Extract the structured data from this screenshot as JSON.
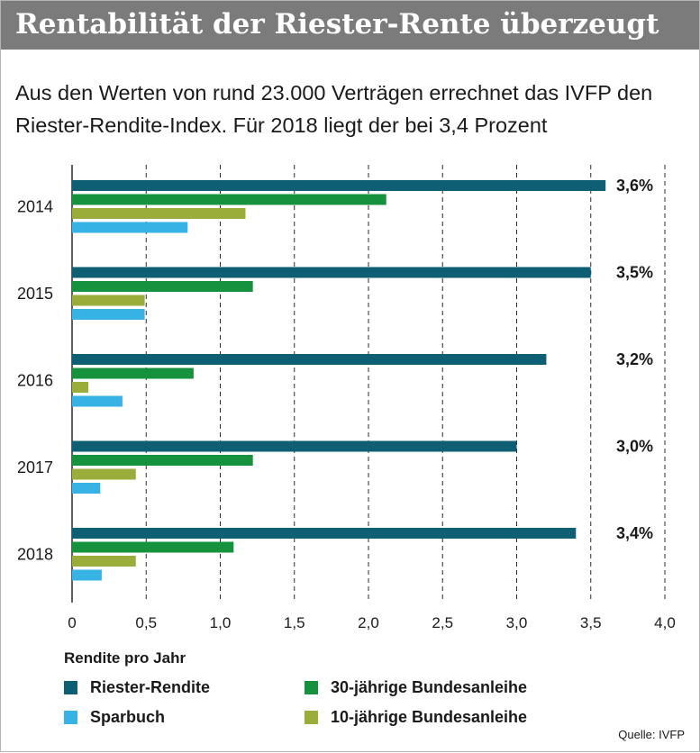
{
  "title": "Rentabilität der Riester-Rente überzeugt",
  "subtitle": "Aus den Werten von rund 23.000 Verträgen errechnet das IVFP den Riester-Rendite-Index. Für 2018 liegt der bei 3,4 Prozent",
  "source": "Quelle: IVFP",
  "legend_title": "Rendite pro Jahr",
  "colors": {
    "riester": "#0e5f73",
    "bund30": "#16913d",
    "bund10": "#9aad3a",
    "sparbuch": "#36b2e4",
    "grid": "#2b2b2b",
    "text": "#1a1a1a"
  },
  "chart_data": {
    "type": "bar",
    "orientation": "horizontal",
    "categories": [
      "2014",
      "2015",
      "2016",
      "2017",
      "2018"
    ],
    "series": [
      {
        "name": "Riester-Rendite",
        "color": "#0e5f73",
        "values": [
          3.6,
          3.5,
          3.2,
          3.0,
          3.4
        ],
        "labels": [
          "3,6%",
          "3,5%",
          "3,2%",
          "3,0%",
          "3,4%"
        ]
      },
      {
        "name": "30-jährige Bundesanleihe",
        "color": "#16913d",
        "values": [
          2.12,
          1.22,
          0.82,
          1.22,
          1.09
        ]
      },
      {
        "name": "10-jährige Bundesanleihe",
        "color": "#9aad3a",
        "values": [
          1.17,
          0.49,
          0.11,
          0.43,
          0.43
        ]
      },
      {
        "name": "Sparbuch",
        "color": "#36b2e4",
        "values": [
          0.78,
          0.49,
          0.34,
          0.19,
          0.2
        ]
      }
    ],
    "xlim": [
      0,
      4.0
    ],
    "xticks": [
      0,
      0.5,
      1.0,
      1.5,
      2.0,
      2.5,
      3.0,
      3.5,
      4.0
    ],
    "xtick_labels": [
      "0",
      "0,5",
      "1,0",
      "1,5",
      "2,0",
      "2,5",
      "3,0",
      "3,5",
      "4,0"
    ],
    "grid": "vertical-dashed",
    "legend_position": "bottom"
  },
  "legend": [
    {
      "label": "Riester-Rendite",
      "color": "#0e5f73"
    },
    {
      "label": "30-jährige Bundesanleihe",
      "color": "#16913d"
    },
    {
      "label": "Sparbuch",
      "color": "#36b2e4"
    },
    {
      "label": "10-jährige Bundesanleihe",
      "color": "#9aad3a"
    }
  ]
}
